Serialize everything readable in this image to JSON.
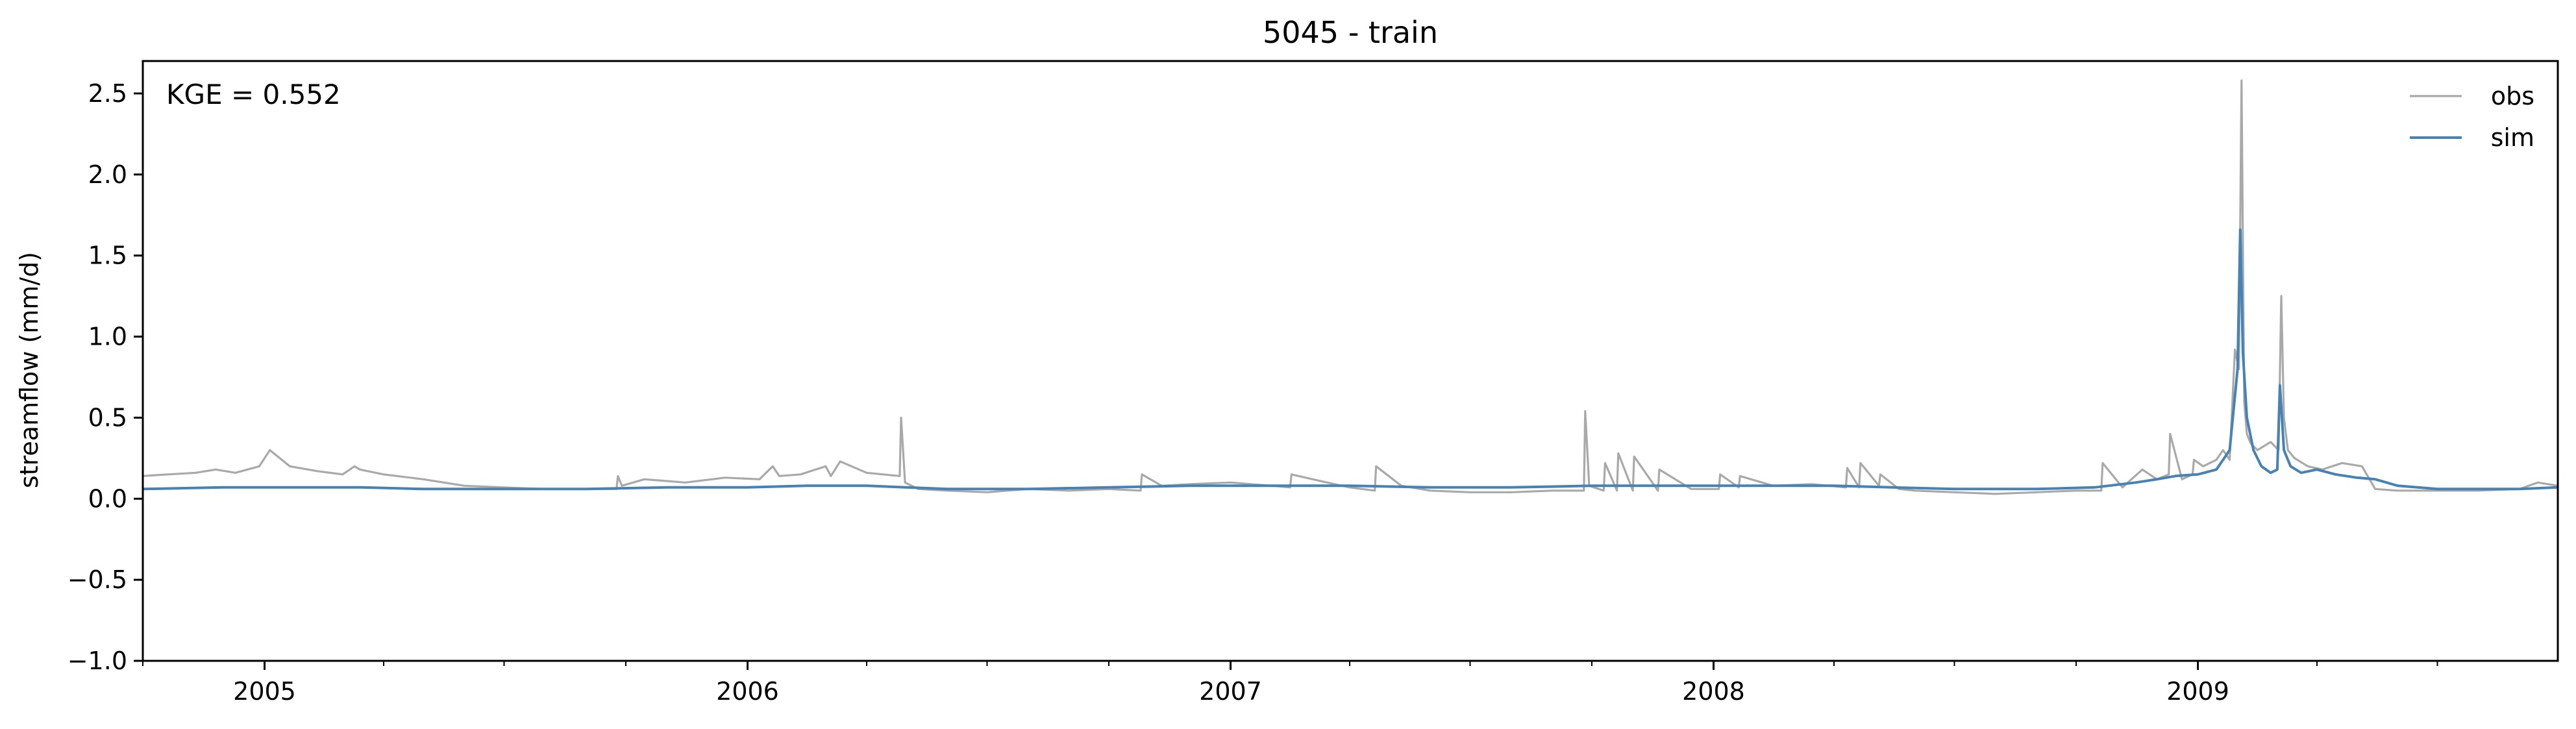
{
  "chart_data": {
    "type": "line",
    "title": "5045 - train",
    "xlabel": "",
    "ylabel": "streamflow (mm/d)",
    "annotation": "KGE = 0.552",
    "xlim": [
      "2004-10-01",
      "2009-09-30"
    ],
    "ylim": [
      -1.0,
      2.7
    ],
    "x_ticks": [
      "2005",
      "2006",
      "2007",
      "2008",
      "2009"
    ],
    "y_ticks": [
      "−1.0",
      "−0.5",
      "0.0",
      "0.5",
      "1.0",
      "1.5",
      "2.0",
      "2.5"
    ],
    "grid": false,
    "legend": "upper right",
    "colors": {
      "obs": "#a9a9a9",
      "sim": "#4682b4"
    },
    "series": [
      {
        "name": "obs",
        "x": [
          "2004-10-01",
          "2004-10-20",
          "2004-11-10",
          "2004-11-25",
          "2004-12-10",
          "2004-12-28",
          "2005-01-05",
          "2005-01-20",
          "2005-02-10",
          "2005-03-01",
          "2005-03-10",
          "2005-03-14",
          "2005-04-01",
          "2005-05-01",
          "2005-06-01",
          "2005-07-01",
          "2005-08-01",
          "2005-09-01",
          "2005-09-24",
          "2005-09-25",
          "2005-09-28",
          "2005-10-15",
          "2005-11-15",
          "2005-12-15",
          "2006-01-10",
          "2006-01-20",
          "2006-01-25",
          "2006-02-10",
          "2006-03-01",
          "2006-03-05",
          "2006-03-12",
          "2006-04-01",
          "2006-04-26",
          "2006-04-27",
          "2006-04-30",
          "2006-05-10",
          "2006-06-01",
          "2006-07-01",
          "2006-08-01",
          "2006-09-01",
          "2006-10-01",
          "2006-10-25",
          "2006-10-26",
          "2006-11-10",
          "2006-12-01",
          "2007-01-01",
          "2007-02-01",
          "2007-02-15",
          "2007-02-16",
          "2007-03-15",
          "2007-04-01",
          "2007-04-20",
          "2007-04-21",
          "2007-05-10",
          "2007-06-01",
          "2007-07-01",
          "2007-08-01",
          "2007-09-01",
          "2007-09-25",
          "2007-09-26",
          "2007-09-29",
          "2007-10-10",
          "2007-10-11",
          "2007-10-20",
          "2007-10-21",
          "2007-11-01",
          "2007-11-02",
          "2007-11-20",
          "2007-11-21",
          "2007-12-15",
          "2008-01-05",
          "2008-01-06",
          "2008-01-20",
          "2008-01-21",
          "2008-02-15",
          "2008-03-15",
          "2008-04-10",
          "2008-04-11",
          "2008-04-20",
          "2008-04-21",
          "2008-05-05",
          "2008-05-06",
          "2008-05-20",
          "2008-06-01",
          "2008-07-01",
          "2008-08-01",
          "2008-09-01",
          "2008-10-01",
          "2008-10-20",
          "2008-10-21",
          "2008-11-05",
          "2008-11-20",
          "2008-12-01",
          "2008-12-10",
          "2008-12-11",
          "2008-12-20",
          "2008-12-28",
          "2008-12-29",
          "2009-01-05",
          "2009-01-15",
          "2009-01-20",
          "2009-01-25",
          "2009-01-29",
          "2009-02-01",
          "2009-02-03",
          "2009-02-05",
          "2009-02-07",
          "2009-02-10",
          "2009-02-15",
          "2009-02-25",
          "2009-03-03",
          "2009-03-05",
          "2009-03-07",
          "2009-03-10",
          "2009-03-15",
          "2009-03-25",
          "2009-04-05",
          "2009-04-20",
          "2009-05-05",
          "2009-05-15",
          "2009-06-01",
          "2009-07-01",
          "2009-08-01",
          "2009-09-01",
          "2009-09-15",
          "2009-09-30"
        ],
        "values": [
          0.14,
          0.15,
          0.16,
          0.18,
          0.16,
          0.2,
          0.3,
          0.2,
          0.17,
          0.15,
          0.2,
          0.18,
          0.15,
          0.12,
          0.08,
          0.07,
          0.06,
          0.06,
          0.06,
          0.14,
          0.08,
          0.12,
          0.1,
          0.13,
          0.12,
          0.2,
          0.14,
          0.15,
          0.2,
          0.14,
          0.23,
          0.16,
          0.14,
          0.5,
          0.1,
          0.06,
          0.05,
          0.04,
          0.06,
          0.05,
          0.06,
          0.05,
          0.15,
          0.08,
          0.09,
          0.1,
          0.08,
          0.07,
          0.15,
          0.1,
          0.07,
          0.05,
          0.2,
          0.08,
          0.05,
          0.04,
          0.04,
          0.05,
          0.05,
          0.54,
          0.08,
          0.05,
          0.22,
          0.05,
          0.28,
          0.05,
          0.26,
          0.05,
          0.18,
          0.06,
          0.06,
          0.15,
          0.07,
          0.14,
          0.08,
          0.09,
          0.07,
          0.19,
          0.07,
          0.22,
          0.08,
          0.15,
          0.06,
          0.05,
          0.04,
          0.03,
          0.04,
          0.05,
          0.05,
          0.22,
          0.07,
          0.18,
          0.12,
          0.15,
          0.4,
          0.12,
          0.15,
          0.24,
          0.2,
          0.24,
          0.3,
          0.24,
          0.92,
          0.8,
          2.58,
          0.6,
          0.4,
          0.34,
          0.3,
          0.35,
          0.3,
          1.25,
          0.5,
          0.3,
          0.25,
          0.2,
          0.18,
          0.22,
          0.2,
          0.06,
          0.05,
          0.05,
          0.05,
          0.06,
          0.1,
          0.08
        ]
      },
      {
        "name": "sim",
        "x": [
          "2004-10-01",
          "2004-12-01",
          "2005-02-01",
          "2005-03-15",
          "2005-05-01",
          "2005-07-01",
          "2005-09-01",
          "2005-11-01",
          "2006-01-01",
          "2006-02-15",
          "2006-04-01",
          "2006-06-01",
          "2006-08-01",
          "2006-10-01",
          "2006-12-01",
          "2007-02-01",
          "2007-04-01",
          "2007-06-01",
          "2007-08-01",
          "2007-10-01",
          "2007-12-01",
          "2008-02-01",
          "2008-04-01",
          "2008-05-15",
          "2008-07-01",
          "2008-09-01",
          "2008-10-15",
          "2008-11-15",
          "2008-12-01",
          "2008-12-15",
          "2009-01-01",
          "2009-01-15",
          "2009-01-25",
          "2009-01-31",
          "2009-02-02",
          "2009-02-04",
          "2009-02-07",
          "2009-02-12",
          "2009-02-18",
          "2009-02-25",
          "2009-03-02",
          "2009-03-04",
          "2009-03-07",
          "2009-03-12",
          "2009-03-20",
          "2009-04-01",
          "2009-04-15",
          "2009-05-01",
          "2009-05-15",
          "2009-06-01",
          "2009-07-01",
          "2009-08-01",
          "2009-09-01",
          "2009-09-30"
        ],
        "values": [
          0.06,
          0.07,
          0.07,
          0.07,
          0.06,
          0.06,
          0.06,
          0.07,
          0.07,
          0.08,
          0.08,
          0.06,
          0.06,
          0.07,
          0.08,
          0.08,
          0.08,
          0.07,
          0.07,
          0.08,
          0.08,
          0.08,
          0.08,
          0.07,
          0.06,
          0.06,
          0.07,
          0.1,
          0.12,
          0.14,
          0.15,
          0.18,
          0.3,
          0.8,
          1.66,
          0.9,
          0.5,
          0.3,
          0.2,
          0.16,
          0.18,
          0.7,
          0.3,
          0.2,
          0.16,
          0.18,
          0.15,
          0.13,
          0.12,
          0.08,
          0.06,
          0.06,
          0.06,
          0.07
        ]
      }
    ]
  }
}
